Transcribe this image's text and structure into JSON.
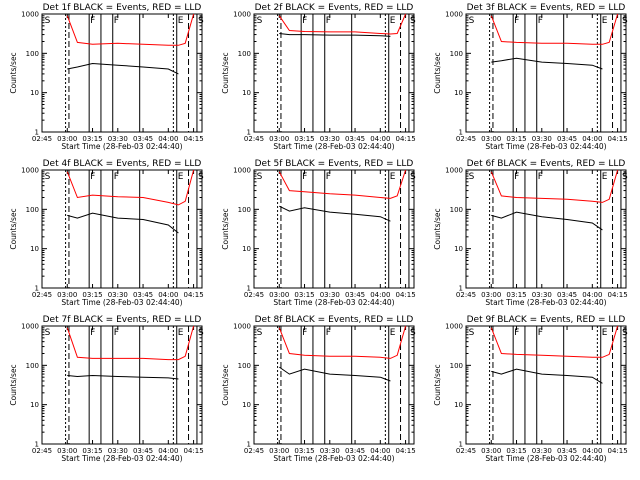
{
  "chart_data": [
    {
      "type": "line",
      "title": "Det 1f BLACK = Events, RED = LLD",
      "xlabel": "Start Time (28-Feb-03 02:44:40)",
      "ylabel": "Counts/sec",
      "xticks": [
        "02:45",
        "03:00",
        "03:15",
        "03:30",
        "03:45",
        "04:00",
        "04:15"
      ],
      "yticks": [
        "1",
        "10",
        "100",
        "1000"
      ],
      "ylim": [
        1,
        1000
      ],
      "yscale": "log",
      "markers": [
        "S",
        "F",
        "F",
        "E",
        "S"
      ],
      "series": [
        {
          "name": "LLD",
          "color": "#ff0000",
          "x": [
            "03:00",
            "03:06",
            "03:15",
            "03:30",
            "03:45",
            "04:00",
            "04:06",
            "04:10",
            "04:15"
          ],
          "y": [
            900,
            190,
            170,
            180,
            170,
            160,
            160,
            180,
            1000
          ]
        },
        {
          "name": "Events",
          "color": "#000000",
          "x": [
            "03:00",
            "03:06",
            "03:15",
            "03:30",
            "03:45",
            "04:00",
            "04:06"
          ],
          "y": [
            40,
            45,
            55,
            50,
            45,
            40,
            30
          ]
        }
      ]
    },
    {
      "type": "line",
      "title": "Det 2f BLACK = Events, RED = LLD",
      "xlabel": "Start Time (28-Feb-03 02:44:40)",
      "ylabel": "Counts/sec",
      "xticks": [
        "02:45",
        "03:00",
        "03:15",
        "03:30",
        "03:45",
        "04:00",
        "04:15"
      ],
      "yticks": [
        "1",
        "10",
        "100",
        "1000"
      ],
      "ylim": [
        1,
        1000
      ],
      "yscale": "log",
      "markers": [
        "S",
        "F",
        "F",
        "E",
        "S"
      ],
      "series": [
        {
          "name": "LLD",
          "color": "#ff0000",
          "x": [
            "03:00",
            "03:06",
            "03:15",
            "03:30",
            "03:45",
            "04:00",
            "04:06",
            "04:10",
            "04:15"
          ],
          "y": [
            900,
            380,
            360,
            350,
            350,
            320,
            310,
            320,
            1000
          ]
        },
        {
          "name": "Events",
          "color": "#000000",
          "x": [
            "03:00",
            "03:06",
            "03:15",
            "03:30",
            "03:45",
            "04:00",
            "04:06"
          ],
          "y": [
            320,
            300,
            300,
            290,
            290,
            280,
            270
          ]
        }
      ]
    },
    {
      "type": "line",
      "title": "Det 3f BLACK = Events, RED = LLD",
      "xlabel": "Start Time (28-Feb-03 02:44:40)",
      "ylabel": "Counts/sec",
      "xticks": [
        "02:45",
        "03:00",
        "03:15",
        "03:30",
        "03:45",
        "04:00",
        "04:15"
      ],
      "yticks": [
        "1",
        "10",
        "100",
        "1000"
      ],
      "ylim": [
        1,
        1000
      ],
      "yscale": "log",
      "markers": [
        "S",
        "F",
        "F",
        "E",
        "S"
      ],
      "series": [
        {
          "name": "LLD",
          "color": "#ff0000",
          "x": [
            "03:00",
            "03:06",
            "03:15",
            "03:30",
            "03:45",
            "04:00",
            "04:06",
            "04:10",
            "04:15"
          ],
          "y": [
            900,
            200,
            190,
            180,
            180,
            170,
            170,
            190,
            1000
          ]
        },
        {
          "name": "Events",
          "color": "#000000",
          "x": [
            "03:00",
            "03:06",
            "03:15",
            "03:30",
            "03:45",
            "04:00",
            "04:06"
          ],
          "y": [
            60,
            65,
            75,
            60,
            55,
            50,
            40
          ]
        }
      ]
    },
    {
      "type": "line",
      "title": "Det 4f BLACK = Events, RED = LLD",
      "xlabel": "Start Time (28-Feb-03 02:44:40)",
      "ylabel": "Counts/sec",
      "xticks": [
        "02:45",
        "03:00",
        "03:15",
        "03:30",
        "03:45",
        "04:00",
        "04:15"
      ],
      "yticks": [
        "1",
        "10",
        "100",
        "1000"
      ],
      "ylim": [
        1,
        1000
      ],
      "yscale": "log",
      "markers": [
        "S",
        "F",
        "F",
        "E",
        "S"
      ],
      "series": [
        {
          "name": "LLD",
          "color": "#ff0000",
          "x": [
            "03:00",
            "03:06",
            "03:15",
            "03:30",
            "03:45",
            "04:00",
            "04:06",
            "04:10",
            "04:15"
          ],
          "y": [
            900,
            200,
            230,
            210,
            200,
            150,
            130,
            160,
            1000
          ]
        },
        {
          "name": "Events",
          "color": "#000000",
          "x": [
            "03:00",
            "03:06",
            "03:15",
            "03:30",
            "03:45",
            "04:00",
            "04:06"
          ],
          "y": [
            70,
            60,
            80,
            60,
            55,
            40,
            25
          ]
        }
      ]
    },
    {
      "type": "line",
      "title": "Det 5f BLACK = Events, RED = LLD",
      "xlabel": "Start Time (28-Feb-03 02:44:40)",
      "ylabel": "Counts/sec",
      "xticks": [
        "02:45",
        "03:00",
        "03:15",
        "03:30",
        "03:45",
        "04:00",
        "04:15"
      ],
      "yticks": [
        "1",
        "10",
        "100",
        "1000"
      ],
      "ylim": [
        1,
        1000
      ],
      "yscale": "log",
      "markers": [
        "S",
        "F",
        "F",
        "E",
        "S"
      ],
      "series": [
        {
          "name": "LLD",
          "color": "#ff0000",
          "x": [
            "03:00",
            "03:06",
            "03:15",
            "03:30",
            "03:45",
            "04:00",
            "04:06",
            "04:10",
            "04:15"
          ],
          "y": [
            900,
            300,
            280,
            250,
            230,
            200,
            190,
            220,
            1000
          ]
        },
        {
          "name": "Events",
          "color": "#000000",
          "x": [
            "03:00",
            "03:06",
            "03:15",
            "03:30",
            "03:45",
            "04:00",
            "04:06"
          ],
          "y": [
            120,
            90,
            110,
            85,
            75,
            65,
            50
          ]
        }
      ]
    },
    {
      "type": "line",
      "title": "Det 6f BLACK = Events, RED = LLD",
      "xlabel": "Start Time (28-Feb-03 02:44:40)",
      "ylabel": "Counts/sec",
      "xticks": [
        "02:45",
        "03:00",
        "03:15",
        "03:30",
        "03:45",
        "04:00",
        "04:15"
      ],
      "yticks": [
        "1",
        "10",
        "100",
        "1000"
      ],
      "ylim": [
        1,
        1000
      ],
      "yscale": "log",
      "markers": [
        "S",
        "F",
        "F",
        "E",
        "S"
      ],
      "series": [
        {
          "name": "LLD",
          "color": "#ff0000",
          "x": [
            "03:00",
            "03:06",
            "03:15",
            "03:30",
            "03:45",
            "04:00",
            "04:06",
            "04:10",
            "04:15"
          ],
          "y": [
            900,
            220,
            200,
            190,
            180,
            160,
            150,
            180,
            1000
          ]
        },
        {
          "name": "Events",
          "color": "#000000",
          "x": [
            "03:00",
            "03:06",
            "03:15",
            "03:30",
            "03:45",
            "04:00",
            "04:06"
          ],
          "y": [
            70,
            60,
            85,
            65,
            55,
            45,
            30
          ]
        }
      ]
    },
    {
      "type": "line",
      "title": "Det 7f BLACK = Events, RED = LLD",
      "xlabel": "Start Time (28-Feb-03 02:44:40)",
      "ylabel": "Counts/sec",
      "xticks": [
        "02:45",
        "03:00",
        "03:15",
        "03:30",
        "03:45",
        "04:00",
        "04:15"
      ],
      "yticks": [
        "1",
        "10",
        "100",
        "1000"
      ],
      "ylim": [
        1,
        1000
      ],
      "yscale": "log",
      "markers": [
        "S",
        "F",
        "F",
        "E",
        "S"
      ],
      "series": [
        {
          "name": "LLD",
          "color": "#ff0000",
          "x": [
            "03:00",
            "03:06",
            "03:15",
            "03:30",
            "03:45",
            "04:00",
            "04:06",
            "04:10",
            "04:15"
          ],
          "y": [
            900,
            160,
            150,
            150,
            150,
            140,
            140,
            170,
            1000
          ]
        },
        {
          "name": "Events",
          "color": "#000000",
          "x": [
            "03:00",
            "03:06",
            "03:15",
            "03:30",
            "03:45",
            "04:00",
            "04:06"
          ],
          "y": [
            55,
            52,
            55,
            52,
            50,
            48,
            45
          ]
        }
      ]
    },
    {
      "type": "line",
      "title": "Det 8f BLACK = Events, RED = LLD",
      "xlabel": "Start Time (28-Feb-03 02:44:40)",
      "ylabel": "Counts/sec",
      "xticks": [
        "02:45",
        "03:00",
        "03:15",
        "03:30",
        "03:45",
        "04:00",
        "04:15"
      ],
      "yticks": [
        "1",
        "10",
        "100",
        "1000"
      ],
      "ylim": [
        1,
        1000
      ],
      "yscale": "log",
      "markers": [
        "S",
        "F",
        "F",
        "E",
        "S"
      ],
      "series": [
        {
          "name": "LLD",
          "color": "#ff0000",
          "x": [
            "03:00",
            "03:06",
            "03:15",
            "03:30",
            "03:45",
            "04:00",
            "04:06",
            "04:10",
            "04:15"
          ],
          "y": [
            900,
            200,
            180,
            170,
            170,
            160,
            150,
            180,
            1000
          ]
        },
        {
          "name": "Events",
          "color": "#000000",
          "x": [
            "03:00",
            "03:06",
            "03:15",
            "03:30",
            "03:45",
            "04:00",
            "04:06"
          ],
          "y": [
            90,
            60,
            80,
            60,
            55,
            50,
            40
          ]
        }
      ]
    },
    {
      "type": "line",
      "title": "Det 9f BLACK = Events, RED = LLD",
      "xlabel": "Start Time (28-Feb-03 02:44:40)",
      "ylabel": "Counts/sec",
      "xticks": [
        "02:45",
        "03:00",
        "03:15",
        "03:30",
        "03:45",
        "04:00",
        "04:15"
      ],
      "yticks": [
        "1",
        "10",
        "100",
        "1000"
      ],
      "ylim": [
        1,
        1000
      ],
      "yscale": "log",
      "markers": [
        "S",
        "F",
        "F",
        "E",
        "S"
      ],
      "series": [
        {
          "name": "LLD",
          "color": "#ff0000",
          "x": [
            "03:00",
            "03:06",
            "03:15",
            "03:30",
            "03:45",
            "04:00",
            "04:06",
            "04:10",
            "04:15"
          ],
          "y": [
            900,
            200,
            190,
            180,
            170,
            160,
            160,
            190,
            1000
          ]
        },
        {
          "name": "Events",
          "color": "#000000",
          "x": [
            "03:00",
            "03:06",
            "03:15",
            "03:30",
            "03:45",
            "04:00",
            "04:06"
          ],
          "y": [
            70,
            60,
            80,
            60,
            55,
            50,
            35
          ]
        }
      ]
    }
  ]
}
